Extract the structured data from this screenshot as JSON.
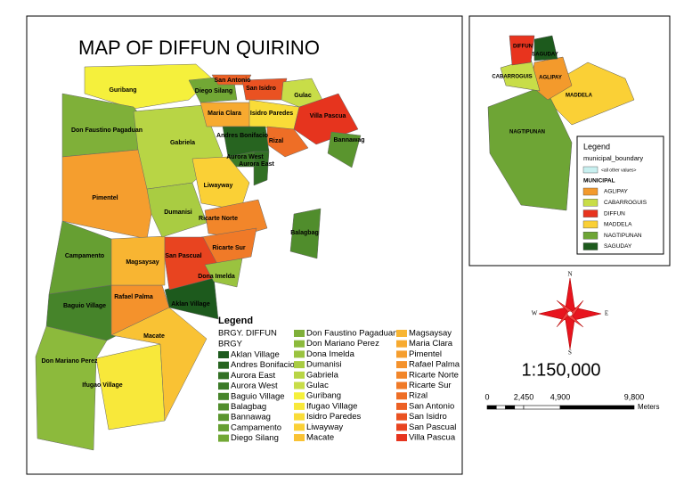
{
  "title": "MAP OF DIFFUN QUIRINO",
  "map_labels": [
    "Guribang",
    "Don Faustino Pagaduan",
    "Pimentel",
    "Campamento",
    "Baguio Village",
    "Don Mariano Perez",
    "Ifugao Village",
    "Macate",
    "Rafael Palma",
    "Aklan Village",
    "Magsaysay",
    "Dumanisi",
    "Gabriela",
    "Maria Clara",
    "Diego Silang",
    "San Antonio",
    "San Isidro",
    "Gulac",
    "Isidro Paredes",
    "Villa Pascua",
    "Bannawag",
    "Rizal",
    "Andres Bonifacio",
    "Aurora West",
    "Aurora East",
    "Liwayway",
    "Ricarte Norte",
    "Ricarte Sur",
    "San Pascual",
    "Dona Imelda",
    "Balagbag"
  ],
  "legend": {
    "title": "Legend",
    "group": "BRGY. DIFFUN",
    "subgroup": "BRGY",
    "items": [
      {
        "name": "Aklan Village",
        "color": "#1d5a1d"
      },
      {
        "name": "Andres Bonifacio",
        "color": "#276420"
      },
      {
        "name": "Aurora East",
        "color": "#327024"
      },
      {
        "name": "Aurora West",
        "color": "#3b7a27"
      },
      {
        "name": "Baguio Village",
        "color": "#46842a"
      },
      {
        "name": "Balagbag",
        "color": "#508d2c"
      },
      {
        "name": "Bannawag",
        "color": "#5a952e"
      },
      {
        "name": "Campamento",
        "color": "#669f32"
      },
      {
        "name": "Diego Silang",
        "color": "#72a835"
      },
      {
        "name": "Don Faustino Pagaduan",
        "color": "#7fb039"
      },
      {
        "name": "Don Mariano Perez",
        "color": "#8cba3c"
      },
      {
        "name": "Dona Imelda",
        "color": "#9ac33f"
      },
      {
        "name": "Dumanisi",
        "color": "#a9cc42"
      },
      {
        "name": "Gabriela",
        "color": "#b8d545"
      },
      {
        "name": "Gulac",
        "color": "#c8dd48"
      },
      {
        "name": "Guribang",
        "color": "#f5f03c"
      },
      {
        "name": "Ifugao Village",
        "color": "#f8e83a"
      },
      {
        "name": "Isidro Paredes",
        "color": "#f9dc38"
      },
      {
        "name": "Liwayway",
        "color": "#fad036"
      },
      {
        "name": "Macate",
        "color": "#f9c234"
      },
      {
        "name": "Magsaysay",
        "color": "#f8b532"
      },
      {
        "name": "Maria Clara",
        "color": "#f7aa30"
      },
      {
        "name": "Pimentel",
        "color": "#f59e2e"
      },
      {
        "name": "Rafael Palma",
        "color": "#f4922c"
      },
      {
        "name": "Ricarte Norte",
        "color": "#f2862a"
      },
      {
        "name": "Ricarte Sur",
        "color": "#f07a28"
      },
      {
        "name": "Rizal",
        "color": "#ee6e26"
      },
      {
        "name": "San Antonio",
        "color": "#ec6024"
      },
      {
        "name": "San Isidro",
        "color": "#ea5222"
      },
      {
        "name": "San Pascual",
        "color": "#e84420"
      },
      {
        "name": "Villa Pascua",
        "color": "#e6341e"
      }
    ]
  },
  "inset": {
    "labels": [
      "NAGTIPUNAN",
      "MADDELA",
      "AGLIPAY",
      "CABARROGUIS",
      "DIFFUN",
      "SAGUDAY"
    ],
    "legend": {
      "title": "Legend",
      "layer": "municipal_boundary",
      "other": "<all other values>",
      "other_color": "#c8f0f0",
      "field": "MUNICIPAL",
      "items": [
        {
          "name": "AGLIPAY",
          "color": "#f39a2c"
        },
        {
          "name": "CABARROGUIS",
          "color": "#c8dd48"
        },
        {
          "name": "DIFFUN",
          "color": "#e8341e"
        },
        {
          "name": "MADDELA",
          "color": "#fad036"
        },
        {
          "name": "NAGTIPUNAN",
          "color": "#6ea535"
        },
        {
          "name": "SAGUDAY",
          "color": "#1d5a1d"
        }
      ]
    }
  },
  "compass": {
    "n": "N",
    "s": "S",
    "e": "E",
    "w": "W"
  },
  "scale": {
    "ratio": "1:150,000",
    "ticks": [
      "0",
      "2,450",
      "4,900",
      "9,800"
    ],
    "unit": "Meters"
  }
}
